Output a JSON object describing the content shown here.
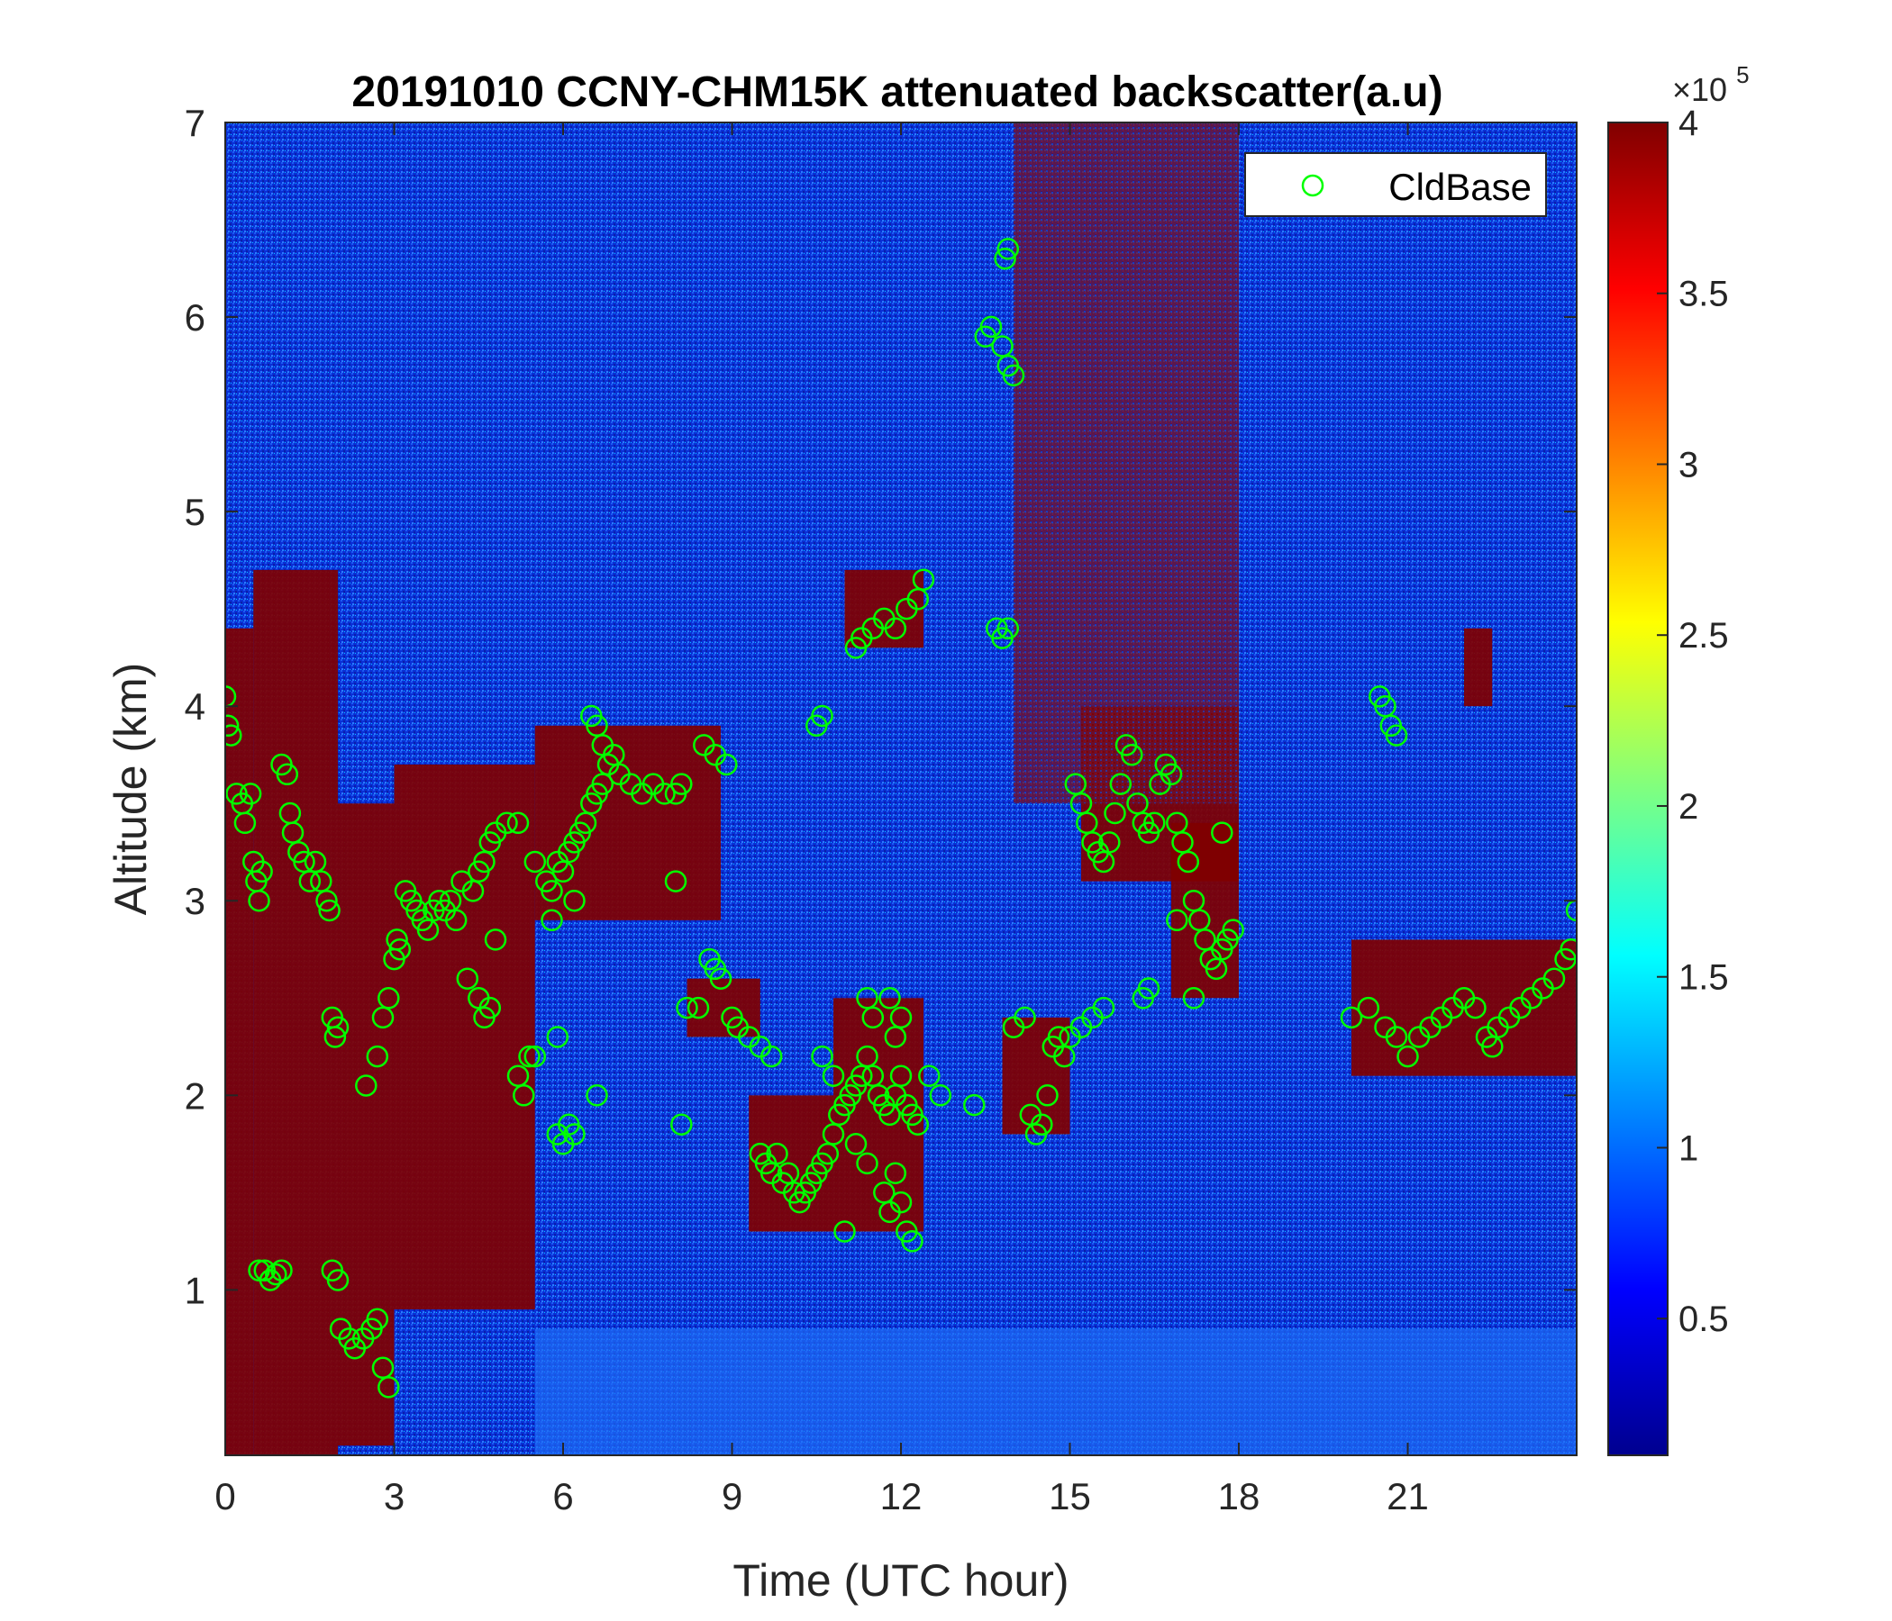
{
  "chart_data": {
    "type": "scatter",
    "title": "20191010 CCNY-CHM15K attenuated backscatter(a.u)",
    "xlabel": "Time (UTC hour)",
    "ylabel": "Altitude (km)",
    "xlim": [
      0,
      24
    ],
    "ylim": [
      0.15,
      7
    ],
    "xticks": [
      0,
      3,
      6,
      9,
      12,
      15,
      18,
      21
    ],
    "xtick_labels": [
      "0",
      "3",
      "6",
      "9",
      "12",
      "15",
      "18",
      "21"
    ],
    "yticks": [
      1,
      2,
      3,
      4,
      5,
      6,
      7
    ],
    "ytick_labels": [
      "1",
      "2",
      "3",
      "4",
      "5",
      "6",
      "7"
    ],
    "legend": {
      "position": "top-right",
      "entries": [
        "CldBase"
      ]
    },
    "colorbar": {
      "colormap": "jet",
      "range": [
        0.1,
        4
      ],
      "multiplier_base": "×10",
      "multiplier_exponent": "5",
      "ticks": [
        0.5,
        1,
        1.5,
        2,
        2.5,
        3,
        3.5,
        4
      ],
      "tick_labels": [
        "0.5",
        "1",
        "1.5",
        "2",
        "2.5",
        "3",
        "3.5",
        "4"
      ]
    },
    "backscatter_field": {
      "description_colors": {
        "background": "#0a2fd6",
        "clear_low_layer": "#1e6cf5",
        "saturated": "#800000"
      },
      "cloud_regions": [
        [
          0.0,
          0.15,
          0.5,
          4.4
        ],
        [
          0.5,
          0.15,
          2.0,
          4.7
        ],
        [
          2.0,
          0.2,
          3.0,
          3.5
        ],
        [
          3.0,
          0.9,
          5.5,
          3.7
        ],
        [
          5.5,
          2.9,
          8.8,
          3.9
        ],
        [
          8.2,
          2.3,
          9.5,
          2.6
        ],
        [
          9.3,
          1.3,
          10.8,
          2.0
        ],
        [
          10.8,
          1.3,
          12.4,
          2.5
        ],
        [
          11.0,
          4.3,
          12.4,
          4.7
        ],
        [
          13.8,
          1.8,
          15.0,
          2.4
        ],
        [
          15.2,
          3.1,
          18.0,
          4.0
        ],
        [
          16.8,
          2.5,
          18.0,
          3.4
        ],
        [
          20.0,
          2.1,
          24.0,
          2.8
        ],
        [
          22.0,
          4.0,
          22.5,
          4.4
        ],
        [
          14.0,
          3.5,
          18.0,
          7.0
        ]
      ]
    },
    "series": [
      {
        "name": "CldBase",
        "color": "#00ff00",
        "marker": "circle",
        "points": [
          [
            0.0,
            4.05
          ],
          [
            0.05,
            3.9
          ],
          [
            0.1,
            3.85
          ],
          [
            0.2,
            3.55
          ],
          [
            0.3,
            3.5
          ],
          [
            0.35,
            3.4
          ],
          [
            0.45,
            3.55
          ],
          [
            0.5,
            3.2
          ],
          [
            0.55,
            3.1
          ],
          [
            0.6,
            3.0
          ],
          [
            0.65,
            3.15
          ],
          [
            0.6,
            1.1
          ],
          [
            0.7,
            1.1
          ],
          [
            0.8,
            1.05
          ],
          [
            0.9,
            1.08
          ],
          [
            1.0,
            1.1
          ],
          [
            1.0,
            3.7
          ],
          [
            1.1,
            3.65
          ],
          [
            1.15,
            3.45
          ],
          [
            1.2,
            3.35
          ],
          [
            1.3,
            3.25
          ],
          [
            1.4,
            3.2
          ],
          [
            1.5,
            3.1
          ],
          [
            1.6,
            3.2
          ],
          [
            1.7,
            3.1
          ],
          [
            1.8,
            3.0
          ],
          [
            1.85,
            2.95
          ],
          [
            1.9,
            2.4
          ],
          [
            1.95,
            2.3
          ],
          [
            2.0,
            2.35
          ],
          [
            1.9,
            1.1
          ],
          [
            2.0,
            1.05
          ],
          [
            2.05,
            0.8
          ],
          [
            2.2,
            0.75
          ],
          [
            2.3,
            0.7
          ],
          [
            2.45,
            0.75
          ],
          [
            2.6,
            0.8
          ],
          [
            2.7,
            0.85
          ],
          [
            2.8,
            0.6
          ],
          [
            2.9,
            0.5
          ],
          [
            2.5,
            2.05
          ],
          [
            2.7,
            2.2
          ],
          [
            2.8,
            2.4
          ],
          [
            2.9,
            2.5
          ],
          [
            3.0,
            2.7
          ],
          [
            3.05,
            2.8
          ],
          [
            3.1,
            2.75
          ],
          [
            3.2,
            3.05
          ],
          [
            3.3,
            3.0
          ],
          [
            3.4,
            2.95
          ],
          [
            3.5,
            2.9
          ],
          [
            3.6,
            2.85
          ],
          [
            3.7,
            2.95
          ],
          [
            3.8,
            3.0
          ],
          [
            3.9,
            2.95
          ],
          [
            4.0,
            3.0
          ],
          [
            4.1,
            2.9
          ],
          [
            4.2,
            3.1
          ],
          [
            4.4,
            3.05
          ],
          [
            4.5,
            3.15
          ],
          [
            4.6,
            3.2
          ],
          [
            4.7,
            3.3
          ],
          [
            4.8,
            3.35
          ],
          [
            5.0,
            3.4
          ],
          [
            5.2,
            3.4
          ],
          [
            4.3,
            2.6
          ],
          [
            4.5,
            2.5
          ],
          [
            4.6,
            2.4
          ],
          [
            4.7,
            2.45
          ],
          [
            4.8,
            2.8
          ],
          [
            5.2,
            2.1
          ],
          [
            5.3,
            2.0
          ],
          [
            5.4,
            2.2
          ],
          [
            5.5,
            2.2
          ],
          [
            5.5,
            3.2
          ],
          [
            5.7,
            3.1
          ],
          [
            5.8,
            3.05
          ],
          [
            5.9,
            3.2
          ],
          [
            6.0,
            3.15
          ],
          [
            6.1,
            3.25
          ],
          [
            6.2,
            3.3
          ],
          [
            6.3,
            3.35
          ],
          [
            6.4,
            3.4
          ],
          [
            6.5,
            3.5
          ],
          [
            6.6,
            3.55
          ],
          [
            6.7,
            3.6
          ],
          [
            6.8,
            3.7
          ],
          [
            6.9,
            3.75
          ],
          [
            7.0,
            3.65
          ],
          [
            7.2,
            3.6
          ],
          [
            7.4,
            3.55
          ],
          [
            7.6,
            3.6
          ],
          [
            7.8,
            3.55
          ],
          [
            8.0,
            3.55
          ],
          [
            8.1,
            3.6
          ],
          [
            6.5,
            3.95
          ],
          [
            6.6,
            3.9
          ],
          [
            6.7,
            3.8
          ],
          [
            5.8,
            2.9
          ],
          [
            6.2,
            3.0
          ],
          [
            5.9,
            2.3
          ],
          [
            5.9,
            1.8
          ],
          [
            6.0,
            1.75
          ],
          [
            6.1,
            1.85
          ],
          [
            6.2,
            1.8
          ],
          [
            6.6,
            2.0
          ],
          [
            8.1,
            1.85
          ],
          [
            8.2,
            2.45
          ],
          [
            8.4,
            2.45
          ],
          [
            8.0,
            3.1
          ],
          [
            8.5,
            3.8
          ],
          [
            8.7,
            3.75
          ],
          [
            8.9,
            3.7
          ],
          [
            8.6,
            2.7
          ],
          [
            8.7,
            2.65
          ],
          [
            8.8,
            2.6
          ],
          [
            9.0,
            2.4
          ],
          [
            9.1,
            2.35
          ],
          [
            9.3,
            2.3
          ],
          [
            9.5,
            2.25
          ],
          [
            9.7,
            2.2
          ],
          [
            9.5,
            1.7
          ],
          [
            9.6,
            1.65
          ],
          [
            9.7,
            1.6
          ],
          [
            9.8,
            1.7
          ],
          [
            9.9,
            1.55
          ],
          [
            10.0,
            1.6
          ],
          [
            10.1,
            1.5
          ],
          [
            10.2,
            1.45
          ],
          [
            10.3,
            1.5
          ],
          [
            10.4,
            1.55
          ],
          [
            10.5,
            1.6
          ],
          [
            10.6,
            1.65
          ],
          [
            10.7,
            1.7
          ],
          [
            10.8,
            1.8
          ],
          [
            10.9,
            1.9
          ],
          [
            11.0,
            1.95
          ],
          [
            11.1,
            2.0
          ],
          [
            11.2,
            2.05
          ],
          [
            11.3,
            2.1
          ],
          [
            11.4,
            2.2
          ],
          [
            11.5,
            2.1
          ],
          [
            11.6,
            2.0
          ],
          [
            11.7,
            1.95
          ],
          [
            11.8,
            1.9
          ],
          [
            11.9,
            2.0
          ],
          [
            12.0,
            2.1
          ],
          [
            12.1,
            1.95
          ],
          [
            12.2,
            1.9
          ],
          [
            12.3,
            1.85
          ],
          [
            10.6,
            2.2
          ],
          [
            10.8,
            2.1
          ],
          [
            11.4,
            2.5
          ],
          [
            11.5,
            2.4
          ],
          [
            11.8,
            2.5
          ],
          [
            11.9,
            2.3
          ],
          [
            12.0,
            2.4
          ],
          [
            11.7,
            1.5
          ],
          [
            11.8,
            1.4
          ],
          [
            11.9,
            1.6
          ],
          [
            12.0,
            1.45
          ],
          [
            12.1,
            1.3
          ],
          [
            12.2,
            1.25
          ],
          [
            11.0,
            1.3
          ],
          [
            11.2,
            1.75
          ],
          [
            11.4,
            1.65
          ],
          [
            10.5,
            3.9
          ],
          [
            10.6,
            3.95
          ],
          [
            11.2,
            4.3
          ],
          [
            11.3,
            4.35
          ],
          [
            11.5,
            4.4
          ],
          [
            11.7,
            4.45
          ],
          [
            11.9,
            4.4
          ],
          [
            12.1,
            4.5
          ],
          [
            12.3,
            4.55
          ],
          [
            12.4,
            4.65
          ],
          [
            12.5,
            2.1
          ],
          [
            12.7,
            2.0
          ],
          [
            13.3,
            1.95
          ],
          [
            13.5,
            5.9
          ],
          [
            13.6,
            5.95
          ],
          [
            13.8,
            5.85
          ],
          [
            13.9,
            5.75
          ],
          [
            14.0,
            5.7
          ],
          [
            13.85,
            6.3
          ],
          [
            13.9,
            6.35
          ],
          [
            13.7,
            4.4
          ],
          [
            13.8,
            4.35
          ],
          [
            13.9,
            4.4
          ],
          [
            14.0,
            2.35
          ],
          [
            14.2,
            2.4
          ],
          [
            14.3,
            1.9
          ],
          [
            14.4,
            1.8
          ],
          [
            14.5,
            1.85
          ],
          [
            14.6,
            2.0
          ],
          [
            14.7,
            2.25
          ],
          [
            14.8,
            2.3
          ],
          [
            14.9,
            2.2
          ],
          [
            15.0,
            2.3
          ],
          [
            15.2,
            2.35
          ],
          [
            15.4,
            2.4
          ],
          [
            15.6,
            2.45
          ],
          [
            15.1,
            3.6
          ],
          [
            15.2,
            3.5
          ],
          [
            15.3,
            3.4
          ],
          [
            15.4,
            3.3
          ],
          [
            15.5,
            3.25
          ],
          [
            15.6,
            3.2
          ],
          [
            15.7,
            3.3
          ],
          [
            15.8,
            3.45
          ],
          [
            15.9,
            3.6
          ],
          [
            16.0,
            3.8
          ],
          [
            16.1,
            3.75
          ],
          [
            16.2,
            3.5
          ],
          [
            16.3,
            3.4
          ],
          [
            16.4,
            3.35
          ],
          [
            16.5,
            3.4
          ],
          [
            16.6,
            3.6
          ],
          [
            16.7,
            3.7
          ],
          [
            16.8,
            3.65
          ],
          [
            16.9,
            3.4
          ],
          [
            17.0,
            3.3
          ],
          [
            17.1,
            3.2
          ],
          [
            17.2,
            3.0
          ],
          [
            17.3,
            2.9
          ],
          [
            17.4,
            2.8
          ],
          [
            17.5,
            2.7
          ],
          [
            17.6,
            2.65
          ],
          [
            17.7,
            2.75
          ],
          [
            17.8,
            2.8
          ],
          [
            17.9,
            2.85
          ],
          [
            16.3,
            2.5
          ],
          [
            16.4,
            2.55
          ],
          [
            17.2,
            2.5
          ],
          [
            17.7,
            3.35
          ],
          [
            16.9,
            2.9
          ],
          [
            20.0,
            2.4
          ],
          [
            20.3,
            2.45
          ],
          [
            20.5,
            4.05
          ],
          [
            20.6,
            4.0
          ],
          [
            20.7,
            3.9
          ],
          [
            20.8,
            3.85
          ],
          [
            20.6,
            2.35
          ],
          [
            20.8,
            2.3
          ],
          [
            21.0,
            2.2
          ],
          [
            21.2,
            2.3
          ],
          [
            21.4,
            2.35
          ],
          [
            21.6,
            2.4
          ],
          [
            21.8,
            2.45
          ],
          [
            22.0,
            2.5
          ],
          [
            22.2,
            2.45
          ],
          [
            22.4,
            2.3
          ],
          [
            22.5,
            2.25
          ],
          [
            22.6,
            2.35
          ],
          [
            22.8,
            2.4
          ],
          [
            23.0,
            2.45
          ],
          [
            23.2,
            2.5
          ],
          [
            23.4,
            2.55
          ],
          [
            23.6,
            2.6
          ],
          [
            23.8,
            2.7
          ],
          [
            23.9,
            2.75
          ],
          [
            24.0,
            2.95
          ]
        ]
      }
    ]
  }
}
